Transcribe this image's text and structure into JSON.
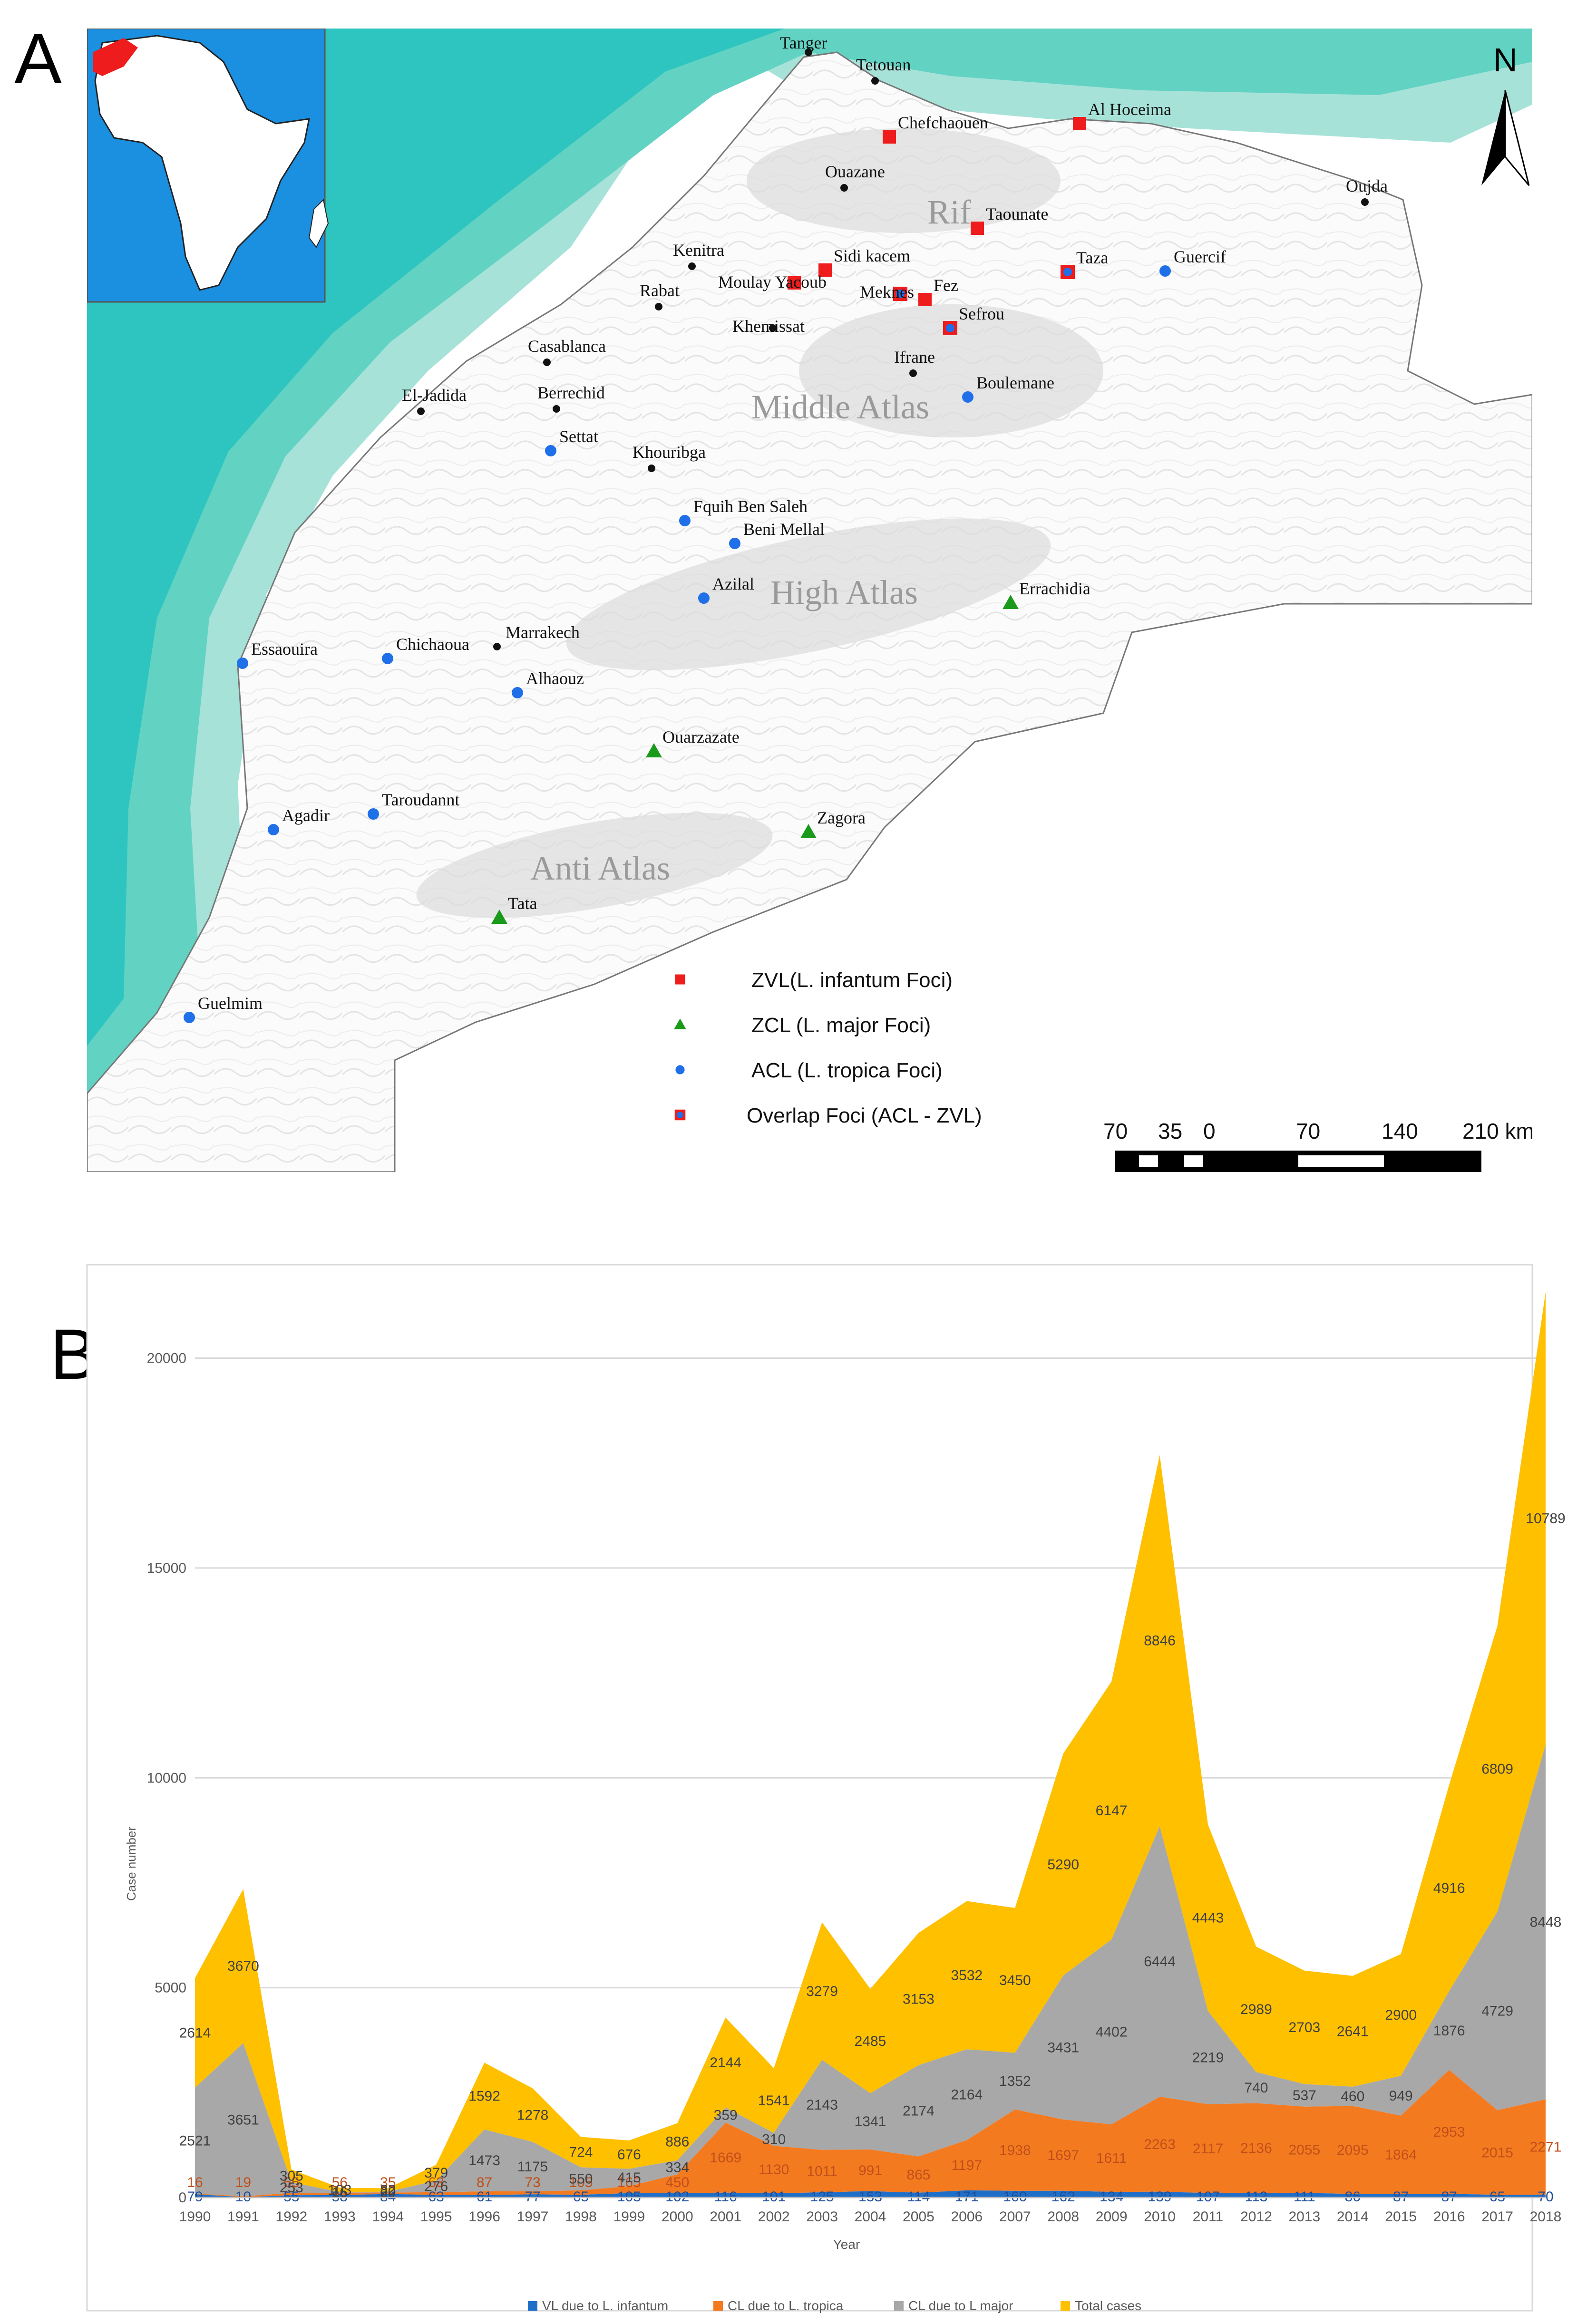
{
  "panel_labels": [
    "A",
    "B"
  ],
  "map": {
    "north_label": "N",
    "regions": [
      "Rif",
      "Middle Atlas",
      "High Atlas",
      "Anti Atlas"
    ],
    "cities": [
      {
        "name": "Tanger",
        "type": "city"
      },
      {
        "name": "Tetouan",
        "type": "city"
      },
      {
        "name": "Chefchaouen",
        "type": "zvl"
      },
      {
        "name": "Al Hoceima",
        "type": "zvl"
      },
      {
        "name": "Ouazane",
        "type": "city"
      },
      {
        "name": "Oujda",
        "type": "city"
      },
      {
        "name": "Taounate",
        "type": "zvl"
      },
      {
        "name": "Kenitra",
        "type": "city"
      },
      {
        "name": "Sidi kacem",
        "type": "zvl"
      },
      {
        "name": "Taza",
        "type": "overlap"
      },
      {
        "name": "Guercif",
        "type": "acl"
      },
      {
        "name": "Moulay Yacoub",
        "type": "zvl"
      },
      {
        "name": "Fez",
        "type": "zvl"
      },
      {
        "name": "Meknes",
        "type": "overlap"
      },
      {
        "name": "Rabat",
        "type": "city"
      },
      {
        "name": "Khemissat",
        "type": "city"
      },
      {
        "name": "Sefrou",
        "type": "overlap"
      },
      {
        "name": "Casablanca",
        "type": "city"
      },
      {
        "name": "Ifrane",
        "type": "city"
      },
      {
        "name": "Boulemane",
        "type": "acl"
      },
      {
        "name": "El-Jadida",
        "type": "city"
      },
      {
        "name": "Berrechid",
        "type": "city"
      },
      {
        "name": "Settat",
        "type": "acl"
      },
      {
        "name": "Khouribga",
        "type": "city"
      },
      {
        "name": "Fquih Ben Saleh",
        "type": "acl"
      },
      {
        "name": "Beni Mellal",
        "type": "acl"
      },
      {
        "name": "Azilal",
        "type": "acl"
      },
      {
        "name": "Errachidia",
        "type": "zcl"
      },
      {
        "name": "Marrakech",
        "type": "city"
      },
      {
        "name": "Essaouira",
        "type": "acl"
      },
      {
        "name": "Chichaoua",
        "type": "acl"
      },
      {
        "name": "Alhaouz",
        "type": "acl"
      },
      {
        "name": "Ouarzazate",
        "type": "zcl"
      },
      {
        "name": "Agadir",
        "type": "acl"
      },
      {
        "name": "Taroudannt",
        "type": "acl"
      },
      {
        "name": "Zagora",
        "type": "zcl"
      },
      {
        "name": "Tata",
        "type": "zcl"
      },
      {
        "name": "Guelmim",
        "type": "acl"
      }
    ],
    "legend": [
      {
        "key": "zvl",
        "label": "ZVL(L. infantum Foci)",
        "color": "#ee1c1c",
        "shape": "square"
      },
      {
        "key": "zcl",
        "label": "ZCL (L. major Foci)",
        "color": "#1a9a1a",
        "shape": "triangle"
      },
      {
        "key": "acl",
        "label": "ACL (L. tropica Foci)",
        "color": "#1f6fe8",
        "shape": "circle"
      },
      {
        "key": "overlap",
        "label": "Overlap Foci (ACL - ZVL)",
        "color": "#ee1c1c",
        "shape": "square-overlap"
      }
    ],
    "scale_labels": [
      "70",
      "35",
      "0",
      "70",
      "140",
      "210 km"
    ],
    "colors": {
      "sea_light": "#a7e2d9",
      "sea_mid": "#62d2c3",
      "sea_dark": "#2ec5c0",
      "inset_water": "#1b8fe0",
      "inset_africa": "#ffffff",
      "inset_morocco": "#ee1c1c"
    }
  },
  "chart_data": {
    "type": "area",
    "title": "",
    "xlabel": "Year",
    "ylabel": "Case number",
    "ylim": [
      0,
      22000
    ],
    "yticks": [
      0,
      5000,
      10000,
      15000,
      20000
    ],
    "grid": true,
    "legend_position": "bottom",
    "categories": [
      "1990",
      "1991",
      "1992",
      "1993",
      "1994",
      "1995",
      "1996",
      "1997",
      "1998",
      "1999",
      "2000",
      "2001",
      "2002",
      "2003",
      "2004",
      "2005",
      "2006",
      "2007",
      "2008",
      "2009",
      "2010",
      "2011",
      "2012",
      "2013",
      "2014",
      "2015",
      "2016",
      "2017",
      "2018"
    ],
    "series": [
      {
        "name": "VL due to L. infantum",
        "color": "#1f6fc9",
        "values": [
          79,
          10,
          55,
          58,
          84,
          63,
          61,
          77,
          65,
          105,
          102,
          116,
          101,
          125,
          153,
          114,
          171,
          160,
          162,
          134,
          139,
          107,
          113,
          111,
          86,
          87,
          87,
          65,
          70
        ]
      },
      {
        "name": "CL due to  L. tropica",
        "color": "#f47a1f",
        "values": [
          16,
          19,
          55,
          56,
          35,
          63,
          87,
          73,
          105,
          165,
          450,
          1669,
          1130,
          1011,
          991,
          865,
          1197,
          1938,
          1697,
          1611,
          2263,
          2117,
          2136,
          2055,
          2095,
          1864,
          2953,
          2015,
          2271
        ]
      },
      {
        "name": "CL due to L major",
        "color": "#a8a8a8",
        "values": [
          2521,
          3651,
          253,
          16,
          20,
          276,
          1473,
          1175,
          550,
          415,
          334,
          359,
          310,
          2143,
          1341,
          2174,
          2164,
          1352,
          3431,
          4402,
          6444,
          2219,
          740,
          537,
          460,
          949,
          1876,
          4729,
          8448
        ]
      },
      {
        "name": "Total  cases",
        "color": "#ffc000",
        "values": [
          2614,
          3670,
          305,
          103,
          82,
          379,
          1592,
          1278,
          724,
          676,
          886,
          2144,
          1541,
          3279,
          2485,
          3153,
          3532,
          3450,
          5290,
          6147,
          8846,
          4443,
          2989,
          2703,
          2641,
          2900,
          4916,
          6809,
          10789
        ]
      }
    ],
    "value_labels": {
      "vl": [
        "79",
        "10",
        "55",
        "58",
        "84",
        "63",
        "61",
        "77",
        "65",
        "105",
        "102",
        "116",
        "101",
        "125",
        "153",
        "114",
        "171",
        "160",
        "162",
        "134",
        "139",
        "107",
        "113",
        "111",
        "86",
        "87",
        "87",
        "65",
        "70"
      ],
      "tropica": [
        "16",
        "19",
        "55",
        "56",
        "35",
        "63",
        "87",
        "73",
        "105",
        "165",
        "450",
        "1669",
        "1130",
        "1011",
        "991",
        "865",
        "1197",
        "1938",
        "1697",
        "1611",
        "2263",
        "2117",
        "2136",
        "2055",
        "2095",
        "1864",
        "2953",
        "2015",
        "2271"
      ],
      "major": [
        "2521",
        "3651",
        "253",
        "16",
        "20",
        "276",
        "1473",
        "1175",
        "550",
        "415",
        "334",
        "359",
        "310",
        "2143",
        "1341",
        "2174",
        "2164",
        "1352",
        "3431",
        "4402",
        "6444",
        "2219",
        "740",
        "537",
        "460",
        "949",
        "1876",
        "4729",
        "8448"
      ],
      "total": [
        "2614",
        "3670",
        "305",
        "103",
        "82",
        "379",
        "1592",
        "1278",
        "724",
        "676",
        "886",
        "2144",
        "1541",
        "3279",
        "2485",
        "3153",
        "3532",
        "3450",
        "5290",
        "6147",
        "8846",
        "4443",
        "2989",
        "2703",
        "2641",
        "2900",
        "4916",
        "6809",
        "10789"
      ]
    }
  }
}
